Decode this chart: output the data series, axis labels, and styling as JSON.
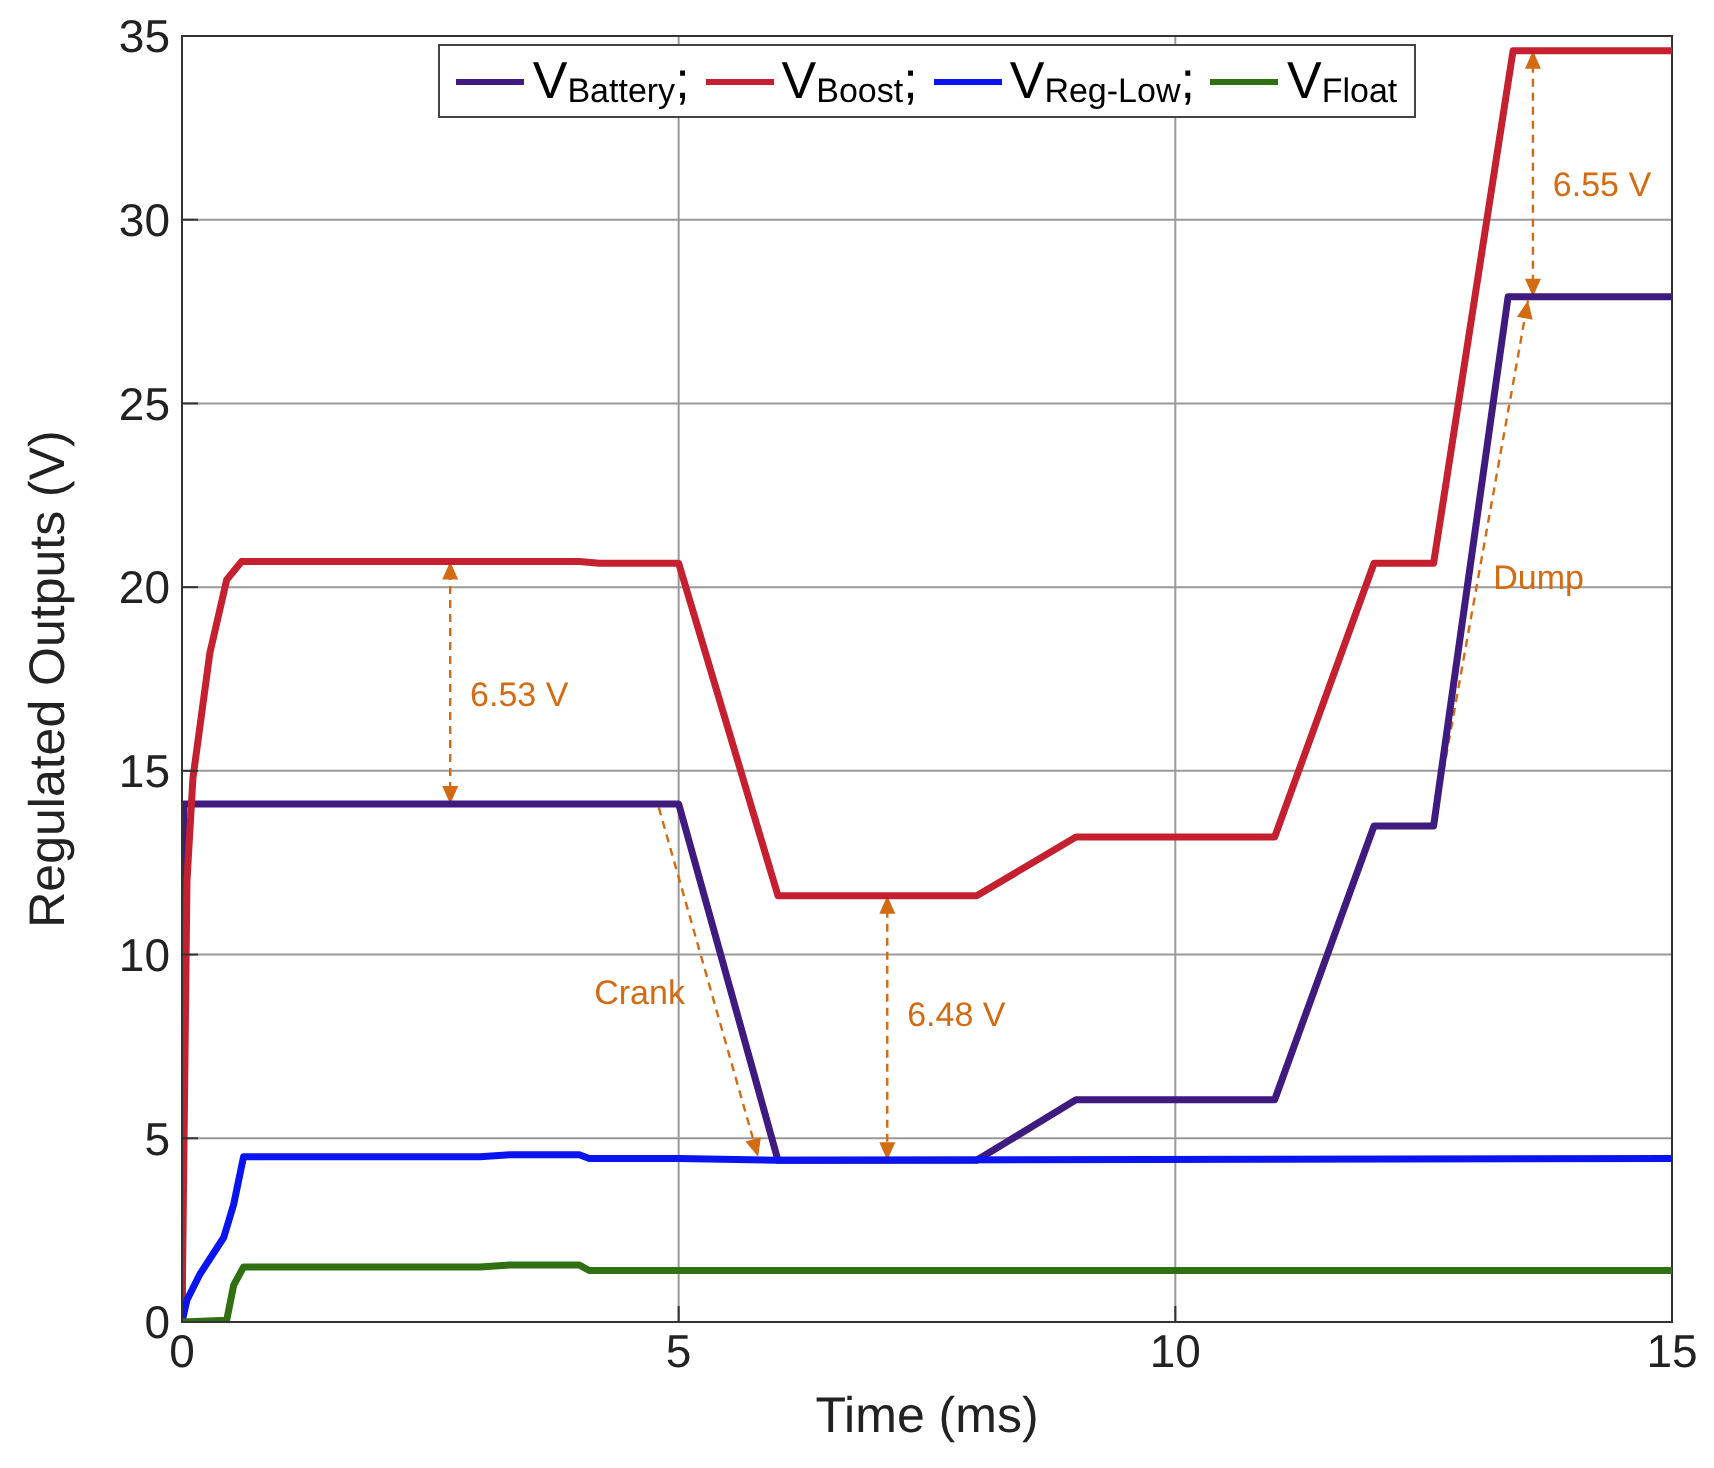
{
  "chart_data": {
    "type": "line",
    "xlabel": "Time (ms)",
    "ylabel": "Regulated Outputs (V)",
    "xlim": [
      0,
      15
    ],
    "xticks": [
      0,
      5,
      10,
      15
    ],
    "ylim": [
      0,
      35
    ],
    "yticks": [
      0,
      5,
      10,
      15,
      20,
      25,
      30,
      35
    ],
    "grid": true,
    "legend": "top",
    "marker": "none",
    "line_style": "solid",
    "series": [
      {
        "name": "V$_{Battery}$;",
        "color": "#3f1a7f",
        "x": [
          0,
          0.02,
          5,
          6,
          8,
          9,
          11,
          12,
          12.6,
          13.35,
          15
        ],
        "values": [
          0,
          14.1,
          14.1,
          4.4,
          4.4,
          6.05,
          6.05,
          13.5,
          13.5,
          27.9,
          27.9
        ]
      },
      {
        "name": "V$_{Boost}$;",
        "color": "#c4202f",
        "x": [
          0,
          0.05,
          0.11,
          0.28,
          0.45,
          0.6,
          4,
          4.2,
          5,
          6,
          8,
          9,
          11,
          12,
          12.6,
          13.4,
          15
        ],
        "values": [
          0,
          12,
          14.8,
          18.2,
          20.2,
          20.7,
          20.7,
          20.65,
          20.65,
          11.6,
          11.6,
          13.2,
          13.2,
          20.65,
          20.65,
          34.6,
          34.6
        ]
      },
      {
        "name": "V$_{Reg-Low}$;",
        "color": "#0a14f0",
        "x": [
          0,
          0.05,
          0.18,
          0.42,
          0.52,
          0.62,
          3,
          3.3,
          4,
          4.1,
          5,
          6,
          15
        ],
        "values": [
          0,
          0.6,
          1.3,
          2.3,
          3.2,
          4.5,
          4.5,
          4.55,
          4.55,
          4.45,
          4.45,
          4.4,
          4.45
        ]
      },
      {
        "name": "V$_{Float}$",
        "color": "#2e7012",
        "x": [
          0,
          0.45,
          0.52,
          0.62,
          3,
          3.3,
          4,
          4.1,
          15
        ],
        "values": [
          0,
          0.05,
          1,
          1.5,
          1.5,
          1.55,
          1.55,
          1.4,
          1.4
        ]
      }
    ],
    "annotations": [
      "6.53 V",
      "Crank",
      "6.48 V",
      "Dump",
      "6.55 V"
    ]
  }
}
